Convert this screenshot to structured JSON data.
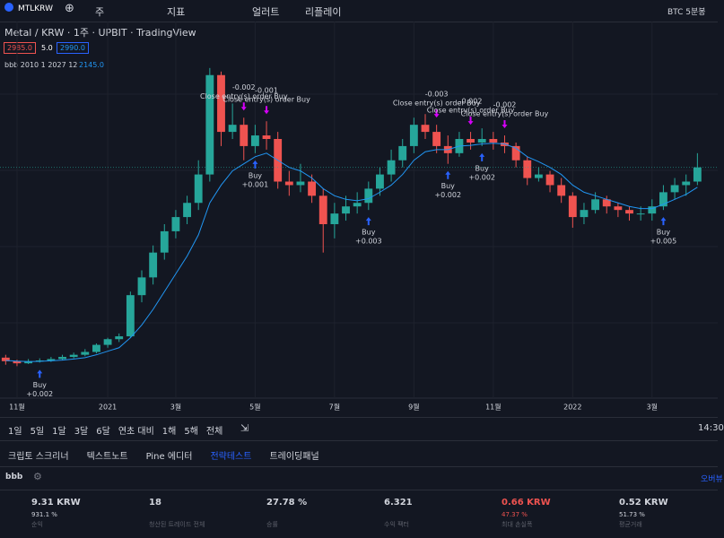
{
  "toolbar": {
    "symbol": "MTLKRW",
    "interval": "주",
    "indicators": "지표",
    "alert": "얼러트",
    "replay": "리플레이",
    "right_label": "BTC 5분봉"
  },
  "chart_data": {
    "type": "candlestick",
    "title": "Metal / KRW · 1주 · UPBIT · TradingView",
    "price_boxes": [
      "2985.0",
      "5.0",
      "2990.0"
    ],
    "indicator_label": "bbb 2010 1 2027 12",
    "indicator_value": "2145.0",
    "up_color": "#26a69a",
    "down_color": "#ef5350",
    "ma_color": "#2196f3",
    "xlim": [
      -0.5,
      62
    ],
    "ylim": [
      0,
      4800
    ],
    "xticks": [
      {
        "value": 1,
        "label": "11월"
      },
      {
        "value": 9,
        "label": "2021"
      },
      {
        "value": 15,
        "label": "3월"
      },
      {
        "value": 22,
        "label": "5월"
      },
      {
        "value": 29,
        "label": "7월"
      },
      {
        "value": 36,
        "label": "9월"
      },
      {
        "value": 43,
        "label": "11월"
      },
      {
        "value": 50,
        "label": "2022"
      },
      {
        "value": 57,
        "label": "3월"
      }
    ],
    "candles": [
      [
        520,
        560,
        420,
        470
      ],
      [
        470,
        490,
        400,
        440
      ],
      [
        440,
        500,
        430,
        470
      ],
      [
        470,
        510,
        450,
        480
      ],
      [
        480,
        530,
        460,
        500
      ],
      [
        500,
        560,
        480,
        530
      ],
      [
        530,
        590,
        510,
        560
      ],
      [
        560,
        640,
        540,
        600
      ],
      [
        600,
        720,
        580,
        700
      ],
      [
        700,
        800,
        660,
        780
      ],
      [
        780,
        860,
        740,
        820
      ],
      [
        820,
        1450,
        800,
        1400
      ],
      [
        1400,
        1750,
        1300,
        1650
      ],
      [
        1650,
        2100,
        1550,
        2000
      ],
      [
        2000,
        2400,
        1900,
        2300
      ],
      [
        2300,
        2600,
        2200,
        2500
      ],
      [
        2500,
        2800,
        2400,
        2700
      ],
      [
        2700,
        3300,
        2600,
        3100
      ],
      [
        3100,
        4600,
        3000,
        4500
      ],
      [
        4500,
        4550,
        3500,
        3700
      ],
      [
        3700,
        4100,
        3600,
        3800
      ],
      [
        3800,
        3900,
        3300,
        3500
      ],
      [
        3500,
        3800,
        3400,
        3650
      ],
      [
        3650,
        3850,
        3450,
        3600
      ],
      [
        3600,
        3700,
        2900,
        3000
      ],
      [
        3000,
        3150,
        2800,
        2950
      ],
      [
        2950,
        3250,
        2850,
        3000
      ],
      [
        3000,
        3100,
        2700,
        2800
      ],
      [
        2800,
        2900,
        2000,
        2400
      ],
      [
        2400,
        2700,
        2200,
        2550
      ],
      [
        2550,
        2800,
        2450,
        2650
      ],
      [
        2650,
        2850,
        2550,
        2700
      ],
      [
        2700,
        3000,
        2600,
        2900
      ],
      [
        2900,
        3200,
        2800,
        3100
      ],
      [
        3100,
        3450,
        3000,
        3300
      ],
      [
        3300,
        3600,
        3200,
        3500
      ],
      [
        3500,
        3900,
        3400,
        3800
      ],
      [
        3800,
        3950,
        3600,
        3700
      ],
      [
        3700,
        3800,
        3400,
        3500
      ],
      [
        3500,
        3650,
        3250,
        3400
      ],
      [
        3400,
        3700,
        3350,
        3600
      ],
      [
        3600,
        3700,
        3450,
        3550
      ],
      [
        3550,
        3750,
        3500,
        3600
      ],
      [
        3600,
        3700,
        3450,
        3550
      ],
      [
        3550,
        3650,
        3400,
        3500
      ],
      [
        3500,
        3550,
        3200,
        3300
      ],
      [
        3300,
        3350,
        2950,
        3050
      ],
      [
        3050,
        3200,
        3000,
        3100
      ],
      [
        3100,
        3150,
        2850,
        2950
      ],
      [
        2950,
        3050,
        2700,
        2800
      ],
      [
        2800,
        2850,
        2350,
        2500
      ],
      [
        2500,
        2700,
        2400,
        2600
      ],
      [
        2600,
        2850,
        2550,
        2750
      ],
      [
        2750,
        2800,
        2550,
        2650
      ],
      [
        2650,
        2700,
        2500,
        2600
      ],
      [
        2600,
        2650,
        2450,
        2550
      ],
      [
        2550,
        2650,
        2450,
        2550
      ],
      [
        2550,
        2750,
        2450,
        2650
      ],
      [
        2650,
        2950,
        2600,
        2850
      ],
      [
        2850,
        3050,
        2750,
        2950
      ],
      [
        2950,
        3100,
        2800,
        3000
      ],
      [
        3000,
        3400,
        2950,
        3200
      ]
    ],
    "ma_values": [
      480,
      470,
      465,
      468,
      475,
      485,
      500,
      520,
      560,
      610,
      660,
      800,
      980,
      1200,
      1450,
      1700,
      1950,
      2250,
      2700,
      2950,
      3150,
      3250,
      3350,
      3400,
      3300,
      3200,
      3150,
      3050,
      2900,
      2800,
      2750,
      2730,
      2760,
      2850,
      2950,
      3100,
      3300,
      3420,
      3450,
      3450,
      3500,
      3510,
      3530,
      3540,
      3530,
      3470,
      3350,
      3280,
      3200,
      3100,
      2950,
      2850,
      2800,
      2750,
      2700,
      2650,
      2620,
      2620,
      2680,
      2750,
      2820,
      2920
    ],
    "entries": [
      {
        "index": 3,
        "label": "Buy",
        "qty": "+0.002"
      },
      {
        "index": 22,
        "label": "Buy",
        "qty": "+0.001"
      },
      {
        "index": 32,
        "label": "Buy",
        "qty": "+0.003"
      },
      {
        "index": 39,
        "label": "Buy",
        "qty": "+0.002"
      },
      {
        "index": 42,
        "label": "Buy",
        "qty": "+0.002"
      },
      {
        "index": 58,
        "label": "Buy",
        "qty": "+0.005"
      }
    ],
    "exits": [
      {
        "index": 21,
        "label": "Close entry(s) order Buy",
        "qty": "-0.002"
      },
      {
        "index": 23,
        "label": "Close entry(s) order Buy",
        "qty": "-0.001"
      },
      {
        "index": 38,
        "label": "Close entry(s) order Buy",
        "qty": "-0.003"
      },
      {
        "index": 41,
        "label": "Close entry(s) order Buy",
        "qty": "-0.002"
      },
      {
        "index": 44,
        "label": "Close entry(s) order Buy",
        "qty": "-0.002"
      }
    ]
  },
  "range_buttons": [
    "1일",
    "5일",
    "1달",
    "3달",
    "6달",
    "연초 대비",
    "1해",
    "5해",
    "전체"
  ],
  "time": "14:30",
  "tabs": [
    "크립토 스크리너",
    "텍스트노트",
    "Pine 에디터",
    "전략테스트",
    "트레이딩패널"
  ],
  "strategy": {
    "name": "bbb",
    "overview": "오버뷰",
    "stats": [
      {
        "value": "9.31 KRW",
        "sub": "931.1 %",
        "label": "순익"
      },
      {
        "value": "18",
        "label": "청산된 트레이드 전체"
      },
      {
        "value": "27.78 %",
        "label": "승률"
      },
      {
        "value": "6.321",
        "label": "수익 팩터"
      },
      {
        "value": "0.66 KRW",
        "sub": "47.37 %",
        "label": "최대 손실폭"
      },
      {
        "value": "0.52 KRW",
        "sub": "51.73 %",
        "label": "평균거래"
      }
    ]
  }
}
